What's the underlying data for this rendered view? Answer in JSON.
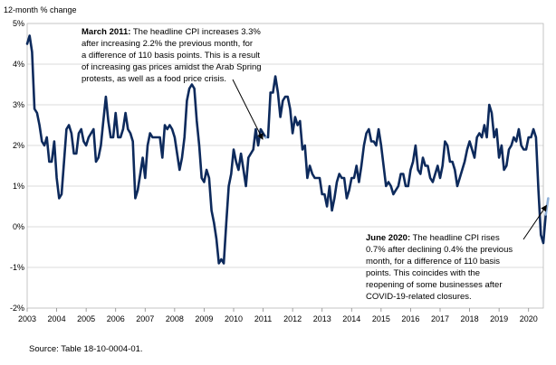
{
  "chart_data": {
    "type": "line",
    "title": "",
    "ylabel": "12-month % change",
    "xlabel": "",
    "ylim": [
      -2,
      5
    ],
    "xlim": [
      2003.0,
      2020.5
    ],
    "y_ticks": [
      {
        "value": 5,
        "label": "5%"
      },
      {
        "value": 4,
        "label": "4%"
      },
      {
        "value": 3,
        "label": "3%"
      },
      {
        "value": 2,
        "label": "2%"
      },
      {
        "value": 1,
        "label": "1%"
      },
      {
        "value": 0,
        "label": "0%"
      },
      {
        "value": -1,
        "label": "-1%"
      },
      {
        "value": -2,
        "label": "-2%"
      }
    ],
    "x_ticks": [
      "2003",
      "2004",
      "2005",
      "2006",
      "2007",
      "2008",
      "2009",
      "2010",
      "2011",
      "2012",
      "2013",
      "2014",
      "2015",
      "2016",
      "2017",
      "2018",
      "2019",
      "2020"
    ],
    "x_start_year": 2003,
    "series": [
      {
        "name": "CPI 12-month % change",
        "color": "#0d2a5c",
        "start": {
          "year": 2003,
          "month": 1
        },
        "values": [
          4.5,
          4.7,
          4.3,
          2.9,
          2.8,
          2.5,
          2.1,
          2.0,
          2.2,
          1.6,
          1.6,
          2.1,
          1.2,
          0.7,
          0.8,
          1.6,
          2.4,
          2.5,
          2.3,
          1.8,
          1.8,
          2.3,
          2.4,
          2.1,
          2.0,
          2.2,
          2.3,
          2.4,
          1.6,
          1.7,
          2.0,
          2.6,
          3.2,
          2.6,
          2.2,
          2.2,
          2.8,
          2.2,
          2.2,
          2.4,
          2.8,
          2.4,
          2.3,
          2.1,
          0.7,
          0.9,
          1.3,
          1.7,
          1.2,
          2.0,
          2.3,
          2.2,
          2.2,
          2.2,
          2.2,
          1.7,
          2.5,
          2.4,
          2.5,
          2.4,
          2.2,
          1.8,
          1.4,
          1.7,
          2.2,
          3.1,
          3.4,
          3.5,
          3.4,
          2.6,
          2.0,
          1.2,
          1.1,
          1.4,
          1.2,
          0.4,
          0.1,
          -0.3,
          -0.9,
          -0.8,
          -0.9,
          0.1,
          1.0,
          1.3,
          1.9,
          1.6,
          1.4,
          1.8,
          1.4,
          1.0,
          1.7,
          1.8,
          1.9,
          2.4,
          2.0,
          2.4,
          2.3,
          2.2
        ],
        "highlight": [
          2.2,
          3.3,
          3.3,
          3.7,
          3.3,
          2.7,
          3.1,
          3.2,
          3.2,
          2.9,
          2.3,
          2.7,
          2.5,
          2.6,
          1.9,
          2.0,
          1.2,
          1.5,
          1.3,
          1.2,
          1.2,
          1.2,
          0.8,
          0.8,
          0.5,
          1.0,
          0.4,
          0.7,
          1.1,
          1.3,
          1.2,
          1.2,
          0.7,
          0.9,
          1.2,
          1.2,
          1.5,
          1.1,
          1.5,
          2.0,
          2.3,
          2.4,
          2.1,
          2.1,
          2.0,
          2.4,
          2.0,
          1.5,
          1.0,
          1.1,
          1.0,
          0.8,
          0.9,
          1.0,
          1.3,
          1.3,
          1.0,
          1.0,
          1.4,
          1.6,
          2.0,
          1.4,
          1.3,
          1.7,
          1.5,
          1.5,
          1.2,
          1.1,
          1.3,
          1.5,
          1.2,
          1.5,
          2.1,
          2.0,
          1.6,
          1.6,
          1.4,
          1.0,
          1.2,
          1.4,
          1.6,
          1.9,
          2.1,
          1.9,
          1.7,
          2.2,
          2.3,
          2.2,
          2.5,
          2.2,
          3.0,
          2.8,
          2.2,
          2.4,
          1.7,
          2.0,
          1.4,
          1.5,
          1.9,
          2.0,
          2.2,
          2.1,
          2.4,
          2.0,
          1.9,
          1.9,
          2.2,
          2.2,
          2.4,
          2.2,
          0.9,
          -0.2,
          -0.4,
          0.3,
          0.7
        ]
      }
    ],
    "highlight_segments": [
      {
        "label": "March 2011",
        "color": "#8fb0d8"
      },
      {
        "label": "June 2020",
        "color": "#8fb0d8"
      }
    ],
    "annotations": [
      {
        "id": "march-2011",
        "title": "March 2011:",
        "lines": [
          " The headline CPI increases 3.3%",
          "after increasing 2.2% the previous month, for",
          "a difference of 110 basis points. This is a result",
          "of increasing gas prices amidst the Arab Spring",
          "protests, as well as a food price crisis."
        ]
      },
      {
        "id": "june-2020",
        "title": "June 2020:",
        "lines": [
          " The headline CPI rises",
          "0.7% after declining 0.4% the previous",
          "month, for a difference of 110 basis",
          "points. This coincides with the",
          "reopening of some businesses after",
          "COVID-19-related closures."
        ]
      }
    ],
    "source": "Source: Table 18-10-0004-01."
  }
}
